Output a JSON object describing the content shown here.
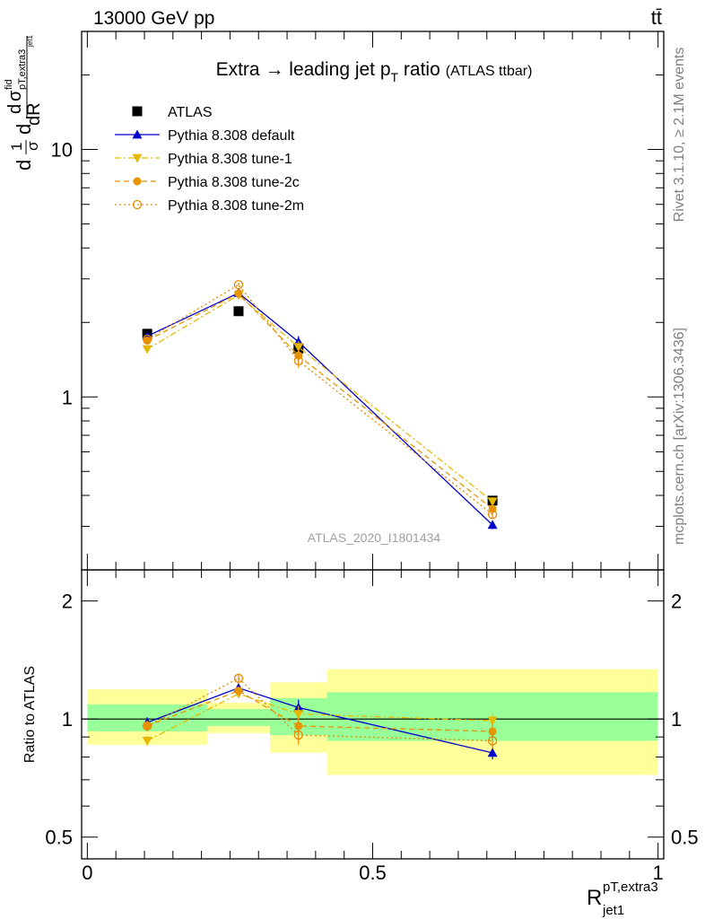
{
  "header": {
    "energy_label": "13000 GeV pp",
    "process_label": "tt̄"
  },
  "side_labels": {
    "rivet": "Rivet 3.1.10, ≥ 2.1M events",
    "mcplots": "mcplots.cern.ch [arXiv:1306.3436]"
  },
  "colors": {
    "atlas": "#000000",
    "default": "#0000cc",
    "tune1": "#e6b800",
    "tune2c": "#e69500",
    "tune2m": "#e68a00",
    "band_inner": "#99ff99",
    "band_outer": "#ffff99"
  },
  "chart_data": [
    {
      "type": "scatter",
      "title_main": "Extra → leading jet p",
      "title_sub": "T",
      "title_tail": " ratio",
      "title_paren": "(ATLAS ttbar)",
      "ylabel": {
        "frac_num": "1",
        "frac_den": "σ",
        "d": "d",
        "sigma": "σ",
        "sup": "fid",
        "sub": "pT,extra3",
        "subsub": "jet1",
        "dr_num": "d",
        "dr_den": "dR"
      },
      "yscale": "log",
      "ylim": [
        0.2,
        30
      ],
      "xlim": [
        -0.01,
        1.01
      ],
      "y_tick_labels": [
        {
          "value": 1,
          "label": "1"
        },
        {
          "value": 10,
          "label": "10"
        }
      ],
      "watermark": "ATLAS_2020_I1801434",
      "legend_position": "top-left",
      "series": [
        {
          "name": "ATLAS",
          "key": "atlas",
          "marker": "square",
          "line": "none",
          "x": [
            0.105,
            0.265,
            0.37,
            0.71
          ],
          "y": [
            1.8,
            2.22,
            1.57,
            0.381
          ]
        },
        {
          "name": "Pythia 8.308 default",
          "key": "default",
          "marker": "triangle-up",
          "line": "solid",
          "x": [
            0.105,
            0.265,
            0.37,
            0.71
          ],
          "y": [
            1.76,
            2.63,
            1.67,
            0.304
          ],
          "err": [
            0.04,
            0.05,
            0.09,
            0.012
          ]
        },
        {
          "name": "Pythia 8.308 tune-1",
          "key": "tune1",
          "marker": "triangle-down",
          "line": "dashdot",
          "x": [
            0.105,
            0.265,
            0.37,
            0.71
          ],
          "y": [
            1.56,
            2.58,
            1.59,
            0.378
          ],
          "err": [
            0.04,
            0.05,
            0.09,
            0.015
          ]
        },
        {
          "name": "Pythia 8.308 tune-2c",
          "key": "tune2c",
          "marker": "circle-filled",
          "line": "dashed",
          "x": [
            0.105,
            0.265,
            0.37,
            0.71
          ],
          "y": [
            1.69,
            2.62,
            1.47,
            0.353
          ],
          "err": [
            0.04,
            0.05,
            0.09,
            0.014
          ]
        },
        {
          "name": "Pythia 8.308 tune-2m",
          "key": "tune2m",
          "marker": "circle-open",
          "line": "dotted",
          "x": [
            0.105,
            0.265,
            0.37,
            0.71
          ],
          "y": [
            1.71,
            2.84,
            1.4,
            0.335
          ],
          "err": [
            0.04,
            0.05,
            0.09,
            0.014
          ]
        }
      ]
    },
    {
      "type": "scatter",
      "ylabel": "Ratio to ATLAS",
      "xlabel_main": "R",
      "xlabel_sup": "pT,extra3",
      "xlabel_sub": "jet1",
      "yscale": "log",
      "ylim": [
        0.44,
        2.4
      ],
      "xlim": [
        -0.01,
        1.01
      ],
      "x_tick_labels": [
        {
          "value": 0,
          "label": "0"
        },
        {
          "value": 0.5,
          "label": "0.5"
        },
        {
          "value": 1,
          "label": "1"
        }
      ],
      "y_tick_labels": [
        {
          "value": 0.5,
          "label": "0.5"
        },
        {
          "value": 1,
          "label": "1"
        },
        {
          "value": 2,
          "label": "2"
        }
      ],
      "bands": [
        {
          "x0": 0.0,
          "x1": 0.21,
          "inner": [
            0.93,
            1.09
          ],
          "outer": [
            0.86,
            1.19
          ]
        },
        {
          "x0": 0.21,
          "x1": 0.32,
          "inner": [
            0.96,
            1.06
          ],
          "outer": [
            0.92,
            1.1
          ]
        },
        {
          "x0": 0.32,
          "x1": 0.42,
          "inner": [
            0.91,
            1.13
          ],
          "outer": [
            0.82,
            1.24
          ]
        },
        {
          "x0": 0.42,
          "x1": 1.0,
          "inner": [
            0.88,
            1.17
          ],
          "outer": [
            0.72,
            1.34
          ]
        }
      ],
      "series": [
        {
          "key": "default",
          "x": [
            0.105,
            0.265,
            0.37,
            0.71
          ],
          "y": [
            0.98,
            1.2,
            1.07,
            0.82
          ],
          "err": [
            0.03,
            0.03,
            0.05,
            0.03
          ]
        },
        {
          "key": "tune1",
          "x": [
            0.105,
            0.265,
            0.37,
            0.71
          ],
          "y": [
            0.88,
            1.16,
            1.03,
            0.99
          ],
          "err": [
            0.025,
            0.03,
            0.05,
            0.04
          ]
        },
        {
          "key": "tune2c",
          "x": [
            0.105,
            0.265,
            0.37,
            0.71
          ],
          "y": [
            0.96,
            1.18,
            0.96,
            0.93
          ],
          "err": [
            0.03,
            0.03,
            0.05,
            0.04
          ]
        },
        {
          "key": "tune2m",
          "x": [
            0.105,
            0.265,
            0.37,
            0.71
          ],
          "y": [
            0.96,
            1.27,
            0.91,
            0.88
          ],
          "err": [
            0.03,
            0.03,
            0.05,
            0.04
          ]
        }
      ]
    }
  ]
}
